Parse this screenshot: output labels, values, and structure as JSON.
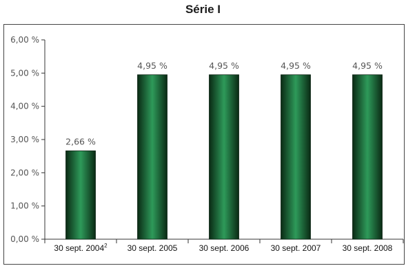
{
  "chart_data": {
    "type": "bar",
    "title": "Série I",
    "categories": [
      "30 sept. 2004",
      "30 sept. 2005",
      "30 sept. 2006",
      "30 sept. 2007",
      "30 sept. 2008"
    ],
    "category_notes": [
      "2",
      "",
      "",
      "",
      ""
    ],
    "values": [
      2.66,
      4.95,
      4.95,
      4.95,
      4.95
    ],
    "data_labels": [
      "2,66 %",
      "4,95 %",
      "4,95 %",
      "4,95 %",
      "4,95 %"
    ],
    "yticks": [
      0,
      1,
      2,
      3,
      4,
      5,
      6
    ],
    "ytick_labels": [
      "0,00 %",
      "1,00 %",
      "2,00 %",
      "3,00 %",
      "4,00 %",
      "5,00 %",
      "6,00 %"
    ],
    "ylim": [
      0,
      6
    ],
    "xlabel": "",
    "ylabel": "",
    "grid": false,
    "bar_colors": {
      "dark": "#0a2a14",
      "mid": "#1f7a45",
      "light": "#2e9a5a"
    }
  }
}
